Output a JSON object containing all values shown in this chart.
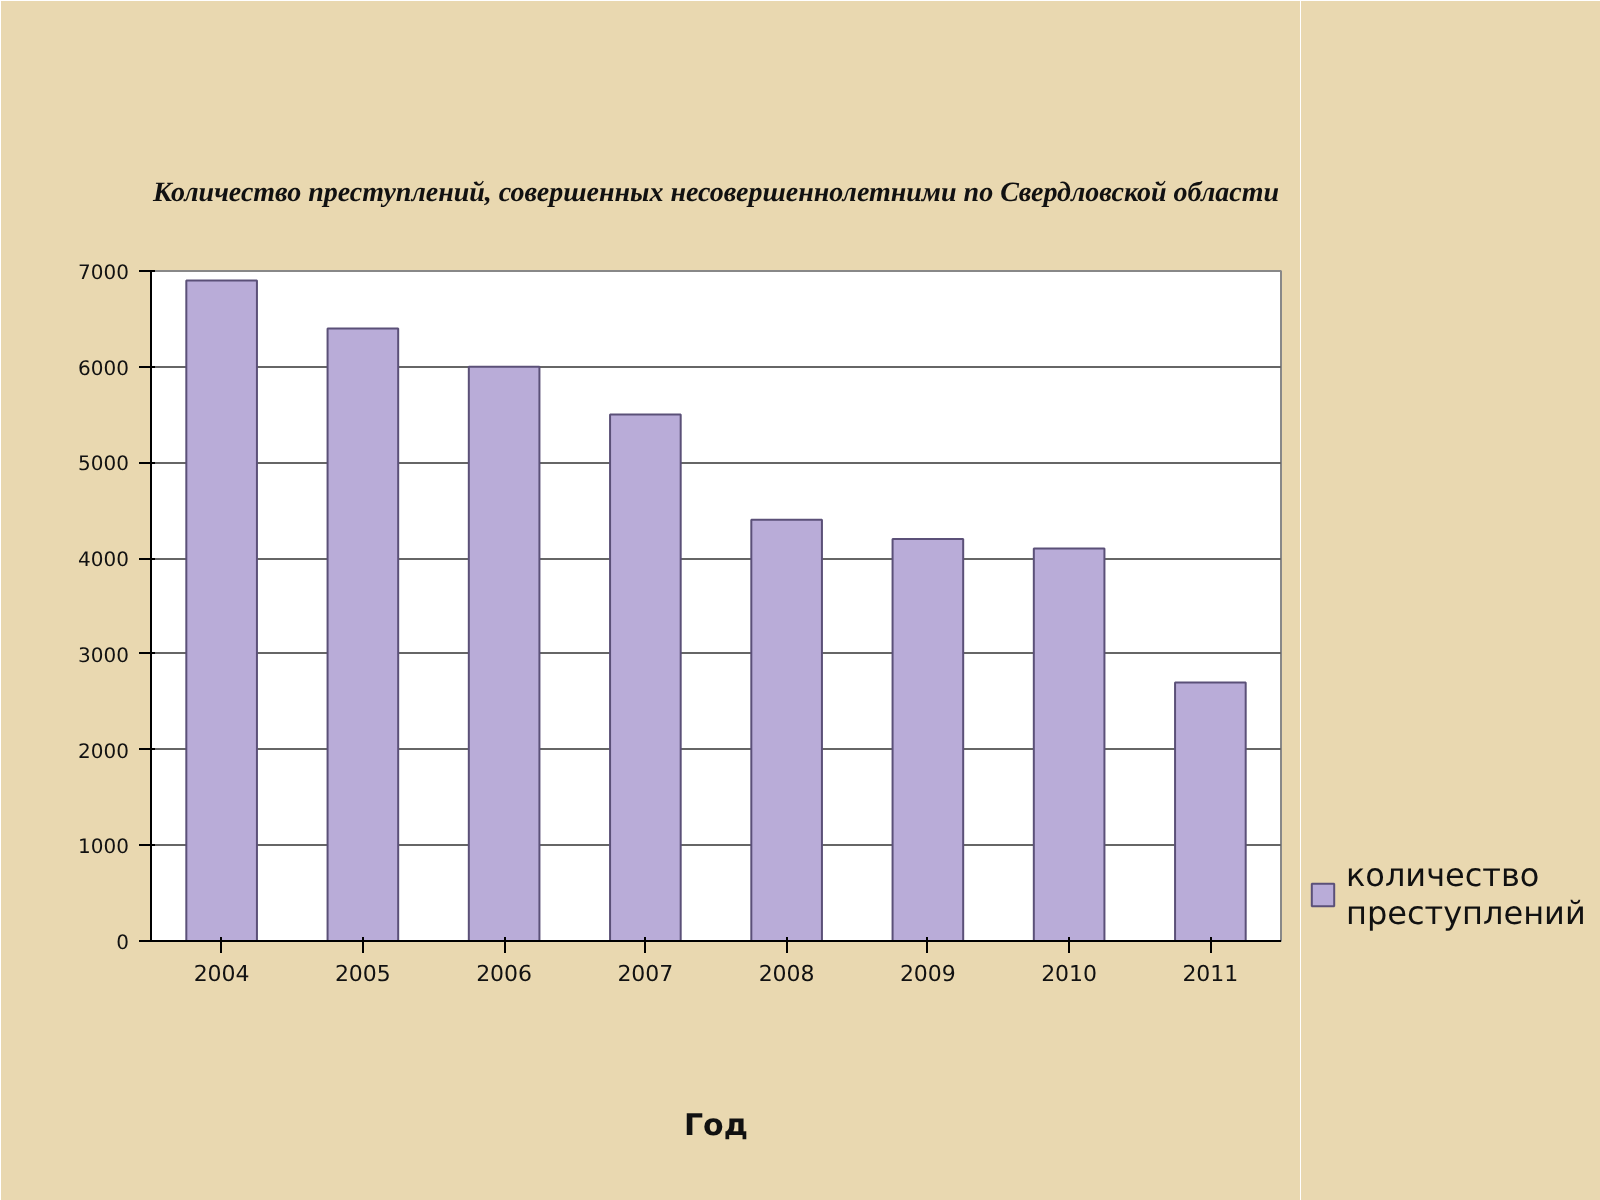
{
  "chart_data": {
    "type": "bar",
    "title": "Количество преступлений, совершенных несовершеннолетними по Свердловской области",
    "xlabel": "Год",
    "categories": [
      "2004",
      "2005",
      "2006",
      "2007",
      "2008",
      "2009",
      "2010",
      "2011"
    ],
    "series": [
      {
        "name": "количество преступлений",
        "color": "#b9acd8",
        "values": [
          6900,
          6400,
          6000,
          5500,
          4400,
          4200,
          4100,
          2700
        ]
      }
    ],
    "ylim": [
      0,
      7000
    ],
    "yticks": [
      0,
      1000,
      2000,
      3000,
      4000,
      5000,
      6000,
      7000
    ],
    "grid": "y",
    "legend": "bottom right"
  }
}
